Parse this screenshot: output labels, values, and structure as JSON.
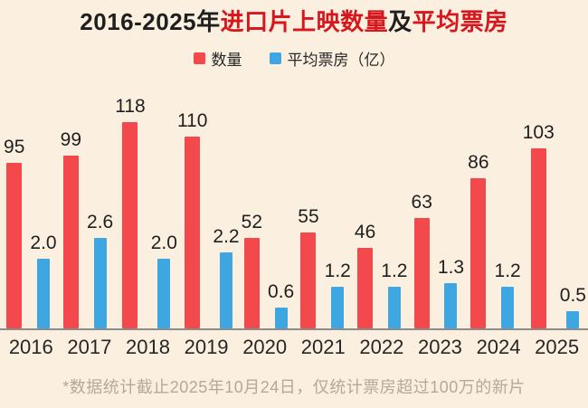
{
  "title": {
    "full": "2016-2025年进口片上映数量及平均票房",
    "parts": [
      {
        "text": "2016-2025年",
        "color": "#1f1f1f"
      },
      {
        "text": "进口片上映数量",
        "color": "#d8161d"
      },
      {
        "text": "及",
        "color": "#1f1f1f"
      },
      {
        "text": "平均票房",
        "color": "#d8161d"
      }
    ]
  },
  "legend": [
    {
      "label": "数量",
      "color": "#f3484c"
    },
    {
      "label": "平均票房（亿）",
      "color": "#3ea6e0"
    }
  ],
  "chart_data": {
    "type": "bar",
    "categories": [
      "2016",
      "2017",
      "2018",
      "2019",
      "2020",
      "2021",
      "2022",
      "2023",
      "2024",
      "2025"
    ],
    "series": [
      {
        "name": "数量",
        "color": "#f3484c",
        "values": [
          95,
          99,
          118,
          110,
          52,
          55,
          46,
          63,
          86,
          103
        ],
        "labels": [
          "95",
          "99",
          "118",
          "110",
          "52",
          "55",
          "46",
          "63",
          "86",
          "103"
        ],
        "axis_max": 143
      },
      {
        "name": "平均票房（亿）",
        "color": "#3ea6e0",
        "values": [
          2.0,
          2.6,
          2.0,
          2.2,
          0.6,
          1.2,
          1.2,
          1.3,
          1.2,
          0.5
        ],
        "labels": [
          "2.0",
          "2.6",
          "2.0",
          "2.2",
          "0.6",
          "1.2",
          "1.2",
          "1.3",
          "1.2",
          "0.5"
        ],
        "axis_max": 7.2
      }
    ],
    "title": "2016-2025年进口片上映数量及平均票房",
    "xlabel": "",
    "ylabel": "",
    "grid": false,
    "legend_position": "top",
    "value_labels": true
  },
  "footnote": "*数据统计截止2025年10月24日，仅统计票房超过100万的新片",
  "colors": {
    "background": "#fbf0e0",
    "bar_red": "#f3484c",
    "bar_blue": "#3ea6e0",
    "title_red": "#d8161d",
    "text_dark": "#1f1f1f",
    "axis_line": "#8c8c8c",
    "footnote_text": "#b6a899"
  }
}
